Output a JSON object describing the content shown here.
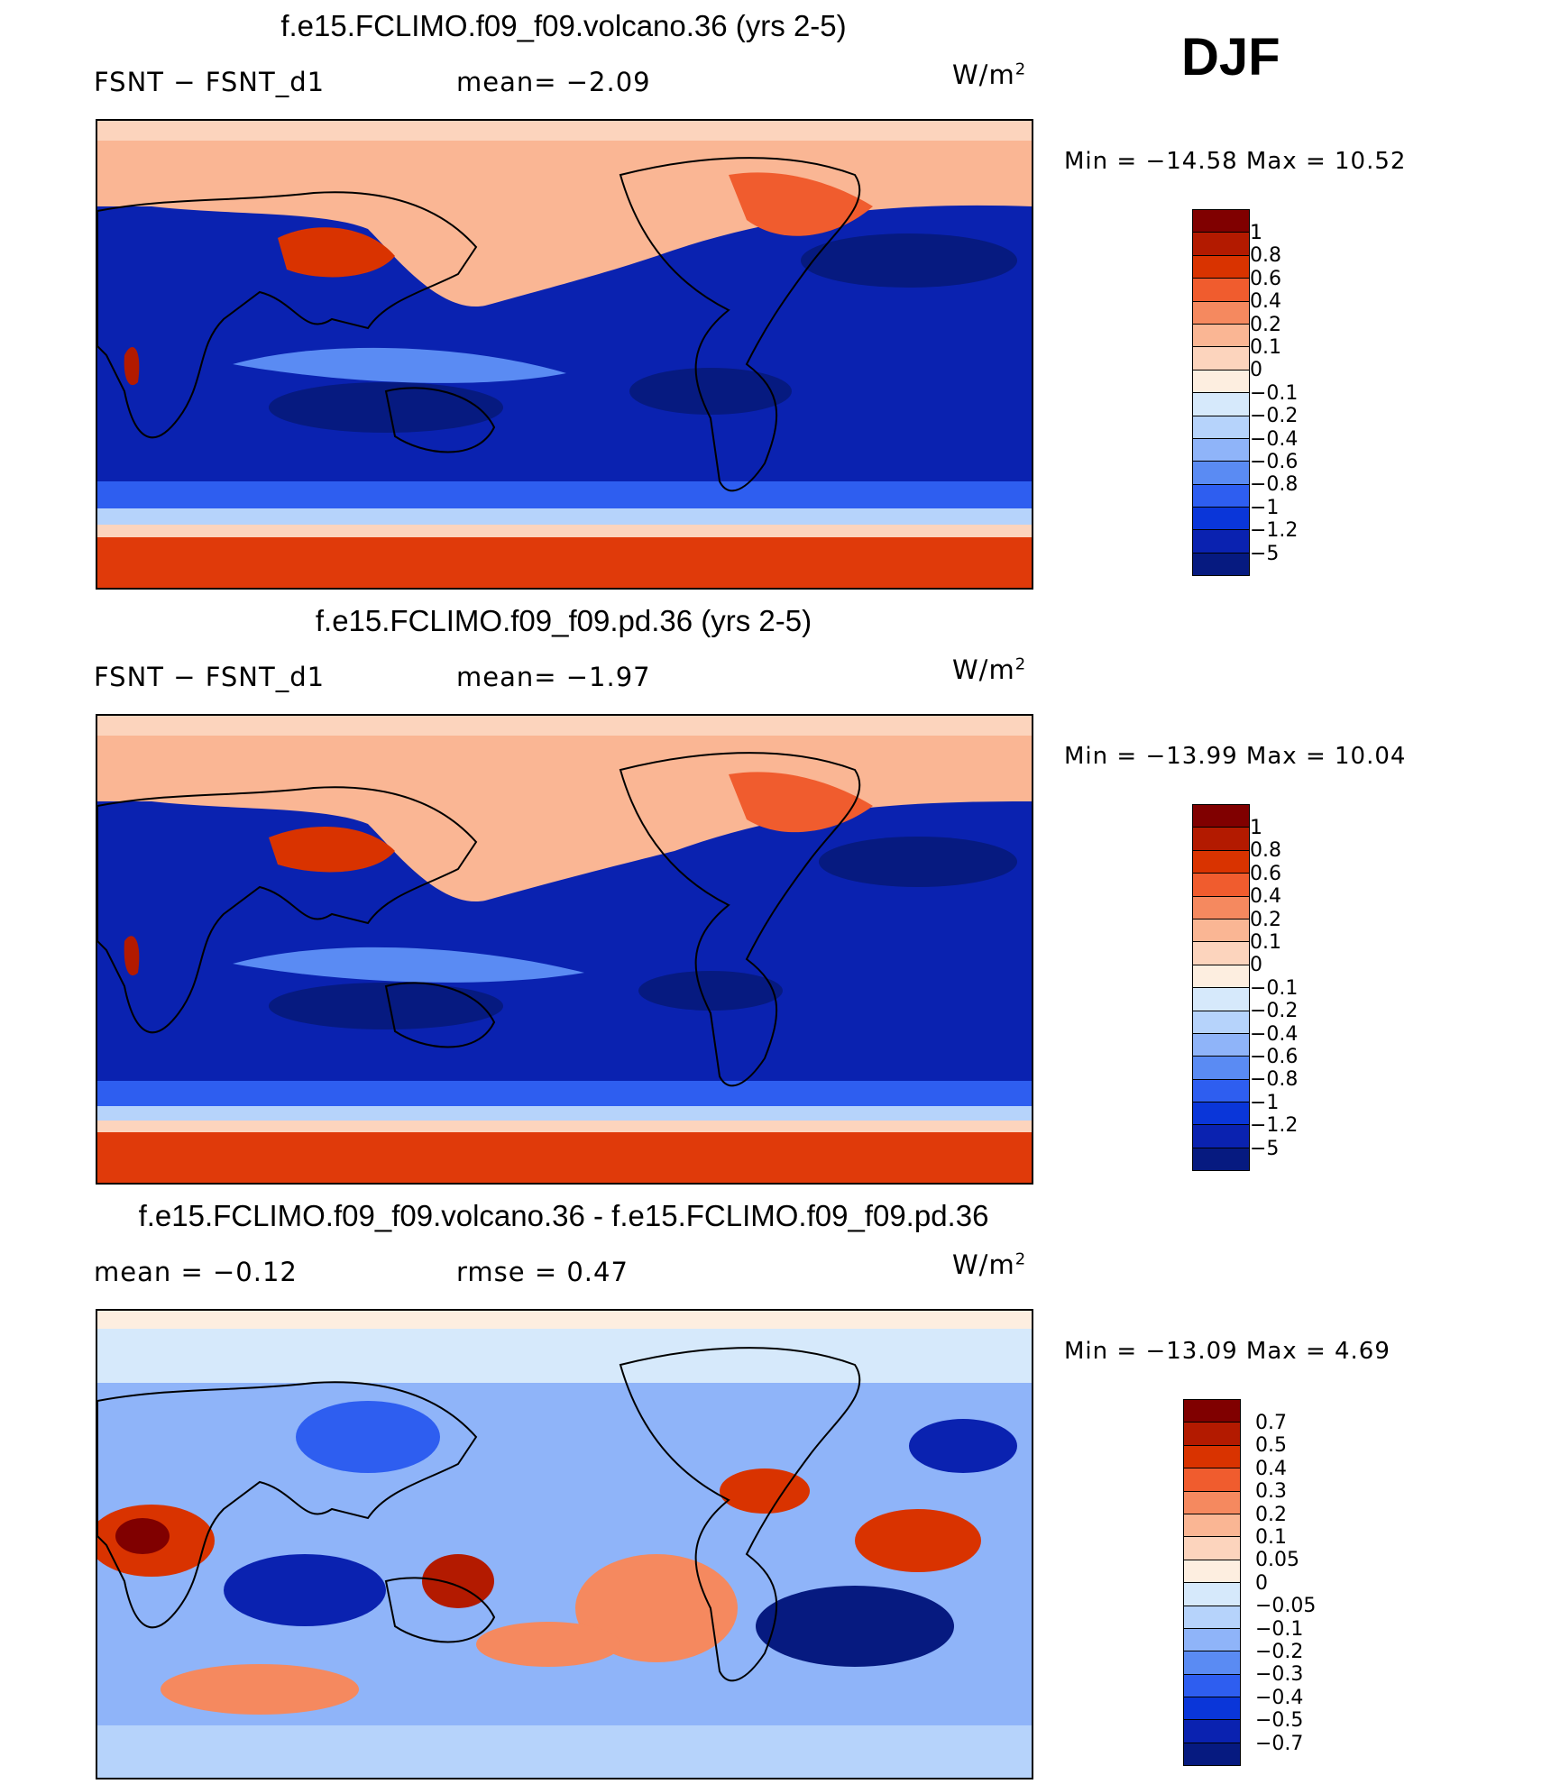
{
  "season": "DJF",
  "panels": [
    {
      "title": "f.e15.FCLIMO.f09_f09.volcano.36 (yrs 2-5)",
      "left_label": "FSNT  −  FSNT_d1",
      "mid_label": "mean=   −2.09",
      "units": "W/m",
      "units_sup": "2",
      "min_label": "Min  =  −14.58  Max  =    10.52",
      "colorbar_labels": [
        "1",
        "0.8",
        "0.6",
        "0.4",
        "0.2",
        "0.1",
        "0",
        "−0.1",
        "−0.2",
        "−0.4",
        "−0.6",
        "−0.8",
        "−1",
        "−1.2",
        "−5"
      ]
    },
    {
      "title": "f.e15.FCLIMO.f09_f09.pd.36 (yrs 2-5)",
      "left_label": "FSNT  −  FSNT_d1",
      "mid_label": "mean=   −1.97",
      "units": "W/m",
      "units_sup": "2",
      "min_label": "Min  =  −13.99  Max  =    10.04",
      "colorbar_labels": [
        "1",
        "0.8",
        "0.6",
        "0.4",
        "0.2",
        "0.1",
        "0",
        "−0.1",
        "−0.2",
        "−0.4",
        "−0.6",
        "−0.8",
        "−1",
        "−1.2",
        "−5"
      ]
    },
    {
      "title": "f.e15.FCLIMO.f09_f09.volcano.36 - f.e15.FCLIMO.f09_f09.pd.36",
      "left_label": "mean  =    −0.12",
      "mid_label": "rmse  =     0.47",
      "units": "W/m",
      "units_sup": "2",
      "min_label": "Min  =  −13.09  Max  =     4.69",
      "colorbar_labels": [
        "0.7",
        "0.5",
        "0.4",
        "0.3",
        "0.2",
        "0.1",
        "0.05",
        "0",
        "−0.05",
        "−0.1",
        "−0.2",
        "−0.3",
        "−0.4",
        "−0.5",
        "−0.7"
      ]
    }
  ],
  "colors": {
    "scale": [
      "#800000",
      "#b31a00",
      "#d93300",
      "#f05c2e",
      "#f5895f",
      "#fab694",
      "#fcd4bd",
      "#fdeee0",
      "#d6e9fb",
      "#b6d3fb",
      "#8fb4f9",
      "#5a8bf3",
      "#2e5ef0",
      "#0a36d9",
      "#0a22b0",
      "#061a80"
    ],
    "ocean": "#0a22b0",
    "deep": "#061a80",
    "polar_pos": "#e03a0a",
    "arctic": "#fcc6a8"
  },
  "chart_data": [
    {
      "type": "heatmap",
      "title": "f.e15.FCLIMO.f09_f09.volcano.36 (yrs 2-5)",
      "variable": "FSNT - FSNT_d1",
      "mean": -2.09,
      "min": -14.58,
      "max": 10.52,
      "units": "W/m2",
      "contour_levels": [
        -5,
        -1.2,
        -1,
        -0.8,
        -0.6,
        -0.4,
        -0.2,
        -0.1,
        0,
        0.1,
        0.2,
        0.4,
        0.6,
        0.8,
        1
      ]
    },
    {
      "type": "heatmap",
      "title": "f.e15.FCLIMO.f09_f09.pd.36 (yrs 2-5)",
      "variable": "FSNT - FSNT_d1",
      "mean": -1.97,
      "min": -13.99,
      "max": 10.04,
      "units": "W/m2",
      "contour_levels": [
        -5,
        -1.2,
        -1,
        -0.8,
        -0.6,
        -0.4,
        -0.2,
        -0.1,
        0,
        0.1,
        0.2,
        0.4,
        0.6,
        0.8,
        1
      ]
    },
    {
      "type": "heatmap",
      "title": "f.e15.FCLIMO.f09_f09.volcano.36 - f.e15.FCLIMO.f09_f09.pd.36",
      "mean": -0.12,
      "rmse": 0.47,
      "min": -13.09,
      "max": 4.69,
      "units": "W/m2",
      "contour_levels": [
        -0.7,
        -0.5,
        -0.4,
        -0.3,
        -0.2,
        -0.1,
        -0.05,
        0,
        0.05,
        0.1,
        0.2,
        0.3,
        0.4,
        0.5,
        0.7
      ]
    }
  ]
}
